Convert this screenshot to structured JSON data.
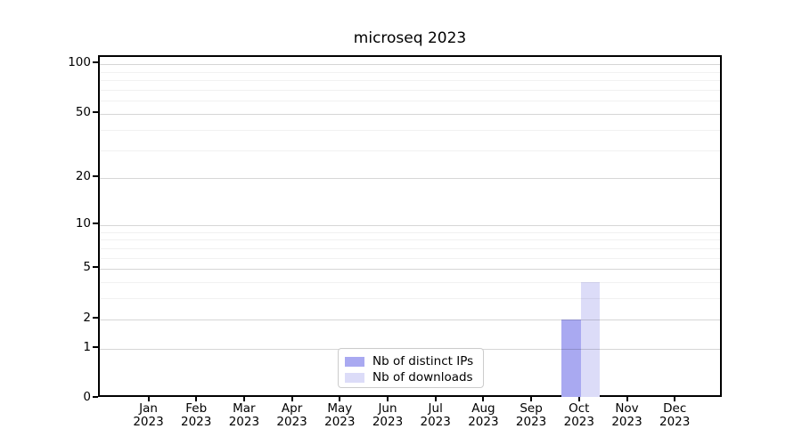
{
  "chart_data": {
    "type": "bar",
    "title": "microseq 2023",
    "categories": [
      "Jan",
      "Feb",
      "Mar",
      "Apr",
      "May",
      "Jun",
      "Jul",
      "Aug",
      "Sep",
      "Oct",
      "Nov",
      "Dec"
    ],
    "category_year": "2023",
    "series": [
      {
        "name": "Nb of distinct IPs",
        "color": "#a9a9f1",
        "values": [
          0,
          0,
          0,
          0,
          0,
          0,
          0,
          0,
          0,
          2,
          0,
          0
        ]
      },
      {
        "name": "Nb of downloads",
        "color": "#dcdcf8",
        "values": [
          0,
          0,
          0,
          0,
          0,
          0,
          0,
          0,
          0,
          4,
          0,
          0
        ]
      }
    ],
    "xlabel": "",
    "ylabel": "",
    "yscale": "symlog",
    "yticks": [
      0,
      1,
      2,
      5,
      10,
      20,
      50,
      100
    ],
    "yminor_ticks": [
      3,
      4,
      6,
      7,
      8,
      9,
      30,
      40,
      60,
      70,
      80,
      90
    ],
    "ylim": [
      0,
      111
    ],
    "grid": "horizontal, major and minor",
    "legend_position": "lower center inside axes",
    "colors": {
      "bar_distinct_ips": "#a9a9f1",
      "bar_downloads": "#dcdcf8",
      "grid_major": "rgba(0,0,0,0.16)",
      "grid_minor": "rgba(0,0,0,0.055)",
      "spine": "#000000"
    }
  }
}
